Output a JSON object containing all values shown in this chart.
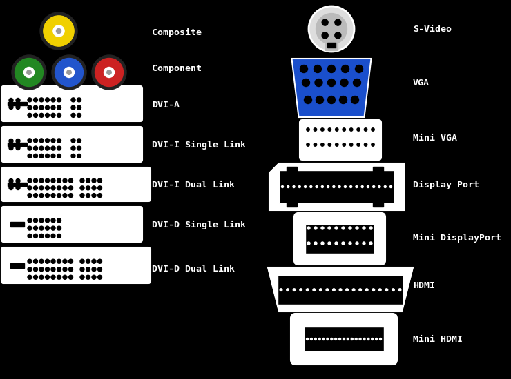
{
  "bg_color": "#000000",
  "white": "#ffffff",
  "blue_vga": "#1a4fcc",
  "fig_w": 7.4,
  "fig_h": 5.5,
  "dpi": 100,
  "left_labels": [
    [
      "Composite",
      47
    ],
    [
      "Component",
      100
    ],
    [
      "DVI-A",
      152
    ],
    [
      "DVI-I Single Link",
      210
    ],
    [
      "DVI-I Dual Link",
      268
    ],
    [
      "DVI-D Single Link",
      326
    ],
    [
      "DVI-D Dual Link",
      390
    ]
  ],
  "right_labels": [
    [
      "S-Video",
      42
    ],
    [
      "VGA",
      120
    ],
    [
      "Mini VGA",
      200
    ],
    [
      "Display Port",
      268
    ],
    [
      "Mini DisplayPort",
      345
    ],
    [
      "HDMI",
      415
    ],
    [
      "Mini HDMI",
      492
    ]
  ]
}
